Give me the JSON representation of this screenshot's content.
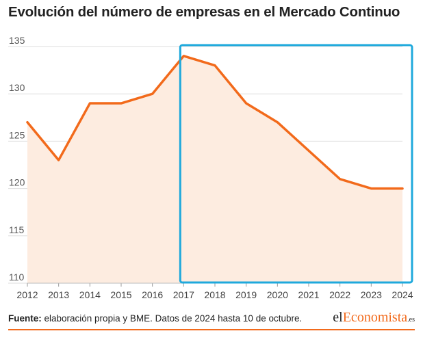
{
  "title": "Evolución del número de empresas en el Mercado Continuo",
  "chart_data": {
    "type": "area",
    "x": [
      2012,
      2013,
      2014,
      2015,
      2016,
      2017,
      2018,
      2019,
      2020,
      2021,
      2022,
      2023,
      2024
    ],
    "x_labels": [
      "2012",
      "2013",
      "2014",
      "2015",
      "2016",
      "2017",
      "2018",
      "2019",
      "2020",
      "2021",
      "2022",
      "2023",
      "2024"
    ],
    "series": [
      {
        "values": [
          127,
          123,
          129,
          129,
          130,
          134,
          133,
          129,
          127,
          124,
          121,
          120,
          120
        ]
      }
    ],
    "ylim": [
      110,
      135
    ],
    "y_ticks": [
      "110",
      "115",
      "120",
      "125",
      "130",
      "135"
    ],
    "grid": true,
    "highlight_range": [
      2017,
      2024
    ],
    "colors": {
      "line": "#f26a1b",
      "fill": "#fdece0",
      "highlight": "#1fa9dc",
      "grid": "#dddddd"
    }
  },
  "footer": {
    "source_label": "Fuente:",
    "source_text": " elaboración propia y BME. Datos de 2024 hasta 10 de octubre."
  },
  "brand": {
    "prefix": "el",
    "highlight": "Economista",
    "suffix": ".es"
  }
}
